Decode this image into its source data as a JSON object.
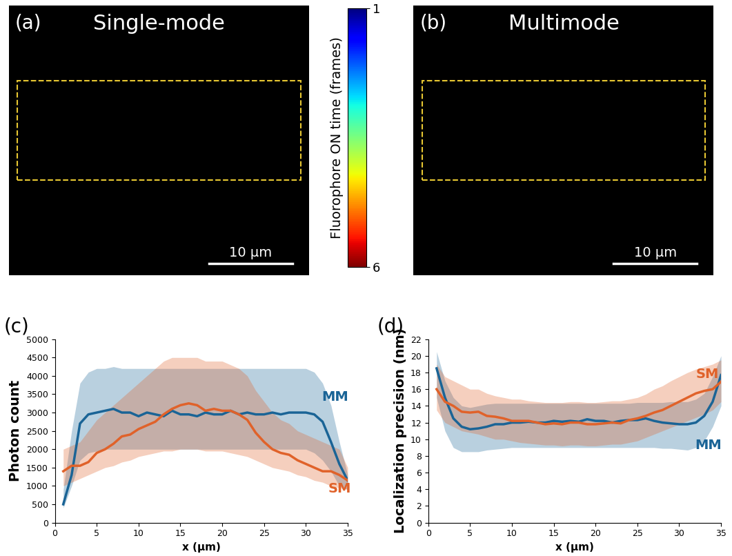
{
  "images": [
    {
      "panel_label": "(a)",
      "title": "Single-mode",
      "scale_bar": {
        "length": 10,
        "label": "10 µm"
      }
    },
    {
      "panel_label": "(b)",
      "title": "Multimode",
      "scale_bar": {
        "length": 10,
        "label": "10 µm"
      }
    }
  ],
  "colorbar": {
    "label": "Fluorophore ON time (frames)",
    "range": [
      1,
      6
    ],
    "ticks": [
      1,
      6
    ]
  },
  "chart_data": [
    {
      "type": "line",
      "panel_label": "(c)",
      "x_label": "x (µm)",
      "y_label": "Photon count",
      "xlim": [
        0,
        35
      ],
      "xticks": [
        0,
        5,
        10,
        15,
        20,
        25,
        30,
        35
      ],
      "ylim": [
        0,
        5000
      ],
      "yticks": [
        0,
        500,
        1000,
        1500,
        2000,
        2500,
        3000,
        3500,
        4000,
        4500,
        5000
      ],
      "x": [
        1,
        2,
        3,
        4,
        5,
        6,
        7,
        8,
        9,
        10,
        11,
        12,
        13,
        14,
        15,
        16,
        17,
        18,
        19,
        20,
        21,
        22,
        23,
        24,
        25,
        26,
        27,
        28,
        29,
        30,
        31,
        32,
        33,
        34,
        35
      ],
      "series": [
        {
          "name": "MM",
          "color": "#1a6496",
          "values": [
            500,
            1300,
            2700,
            2950,
            3000,
            3050,
            3100,
            3000,
            3000,
            2900,
            3000,
            2950,
            2900,
            3050,
            2950,
            2950,
            2900,
            3000,
            2950,
            2950,
            3050,
            2950,
            3000,
            2950,
            2950,
            3000,
            2950,
            3000,
            3000,
            3000,
            2950,
            2750,
            2200,
            1600,
            1150
          ],
          "upper": [
            900,
            2500,
            3800,
            4100,
            4200,
            4200,
            4250,
            4200,
            4200,
            4200,
            4200,
            4200,
            4200,
            4200,
            4200,
            4200,
            4200,
            4200,
            4200,
            4200,
            4200,
            4200,
            4200,
            4200,
            4200,
            4200,
            4200,
            4200,
            4200,
            4200,
            4100,
            3800,
            3200,
            2200,
            1300
          ],
          "lower": [
            400,
            1000,
            1700,
            1900,
            1950,
            2000,
            2000,
            2000,
            2000,
            2000,
            2000,
            2000,
            2000,
            2000,
            2000,
            2000,
            2000,
            2000,
            2000,
            2000,
            2000,
            2000,
            2000,
            2000,
            2000,
            2000,
            2000,
            2000,
            2000,
            2000,
            1900,
            1700,
            1400,
            1000,
            900
          ]
        },
        {
          "name": "SM",
          "color": "#e0622a",
          "values": [
            1400,
            1550,
            1550,
            1650,
            1900,
            2000,
            2150,
            2350,
            2400,
            2550,
            2650,
            2750,
            2950,
            3100,
            3200,
            3250,
            3200,
            3050,
            3100,
            3050,
            3050,
            2950,
            2800,
            2450,
            2200,
            2000,
            1900,
            1850,
            1700,
            1600,
            1500,
            1400,
            1400,
            1300,
            1150
          ],
          "upper": [
            2000,
            2100,
            2200,
            2500,
            2800,
            3000,
            3200,
            3400,
            3600,
            3800,
            4000,
            4200,
            4400,
            4500,
            4500,
            4500,
            4500,
            4400,
            4400,
            4400,
            4300,
            4200,
            4000,
            3600,
            3300,
            3000,
            2800,
            2700,
            2500,
            2400,
            2300,
            2200,
            2100,
            2000,
            1500
          ],
          "lower": [
            1000,
            1100,
            1200,
            1300,
            1400,
            1500,
            1550,
            1650,
            1700,
            1800,
            1850,
            1900,
            1950,
            1950,
            2000,
            2000,
            2000,
            1950,
            1950,
            1950,
            1900,
            1850,
            1800,
            1700,
            1600,
            1500,
            1450,
            1400,
            1300,
            1250,
            1150,
            1100,
            1000,
            950,
            900
          ]
        }
      ]
    },
    {
      "type": "line",
      "panel_label": "(d)",
      "x_label": "x (µm)",
      "y_label": "Localization precision (nm)",
      "xlim": [
        0,
        35
      ],
      "xticks": [
        0,
        5,
        10,
        15,
        20,
        25,
        30,
        35
      ],
      "ylim": [
        0,
        22
      ],
      "yticks": [
        0,
        2,
        4,
        6,
        8,
        10,
        12,
        14,
        16,
        18,
        20,
        22
      ],
      "x": [
        1,
        2,
        3,
        4,
        5,
        6,
        7,
        8,
        9,
        10,
        11,
        12,
        13,
        14,
        15,
        16,
        17,
        18,
        19,
        20,
        21,
        22,
        23,
        24,
        25,
        26,
        27,
        28,
        29,
        30,
        31,
        32,
        33,
        34,
        35
      ],
      "series": [
        {
          "name": "MM",
          "color": "#1a6496",
          "values": [
            18.5,
            15,
            12.5,
            11.5,
            11.2,
            11.3,
            11.5,
            11.8,
            11.8,
            12,
            12,
            12.1,
            12,
            12,
            12.2,
            12.1,
            12.2,
            12.1,
            12.4,
            12.2,
            12.2,
            12,
            12.2,
            12.3,
            12.3,
            12.5,
            12.2,
            12,
            11.9,
            11.8,
            11.8,
            12,
            12.8,
            14.5,
            17.7
          ],
          "upper": [
            20.5,
            17,
            15,
            14,
            13.8,
            14,
            14.2,
            14.3,
            14.3,
            14.3,
            14.3,
            14.3,
            14.3,
            14.3,
            14.3,
            14.3,
            14.3,
            14.3,
            14.3,
            14.3,
            14.3,
            14.3,
            14.3,
            14.3,
            14.4,
            14.4,
            14.4,
            14.4,
            14.5,
            14.5,
            14.5,
            14.8,
            15.5,
            17.5,
            20
          ],
          "lower": [
            15,
            11,
            9,
            8.5,
            8.5,
            8.5,
            8.7,
            8.8,
            8.9,
            9,
            9,
            9,
            9,
            9,
            9,
            9,
            9,
            9,
            9,
            9,
            9,
            9,
            9,
            9,
            9,
            9,
            9,
            8.9,
            8.9,
            8.8,
            8.7,
            9,
            9.8,
            11.5,
            14
          ]
        },
        {
          "name": "SM",
          "color": "#e0622a",
          "values": [
            16,
            14.5,
            14,
            13.3,
            13.2,
            13.3,
            12.8,
            12.7,
            12.5,
            12.2,
            12.2,
            12.2,
            12,
            11.8,
            11.9,
            11.8,
            12,
            12,
            11.8,
            11.8,
            11.9,
            12,
            11.9,
            12.3,
            12.5,
            12.8,
            13.2,
            13.5,
            14,
            14.5,
            15,
            15.5,
            15.8,
            16,
            16.9
          ],
          "upper": [
            19,
            17.5,
            17,
            16.5,
            16,
            16,
            15.5,
            15.2,
            15,
            14.8,
            14.8,
            14.6,
            14.5,
            14.4,
            14.4,
            14.4,
            14.5,
            14.5,
            14.4,
            14.4,
            14.5,
            14.6,
            14.6,
            14.8,
            15,
            15.4,
            16,
            16.4,
            17,
            17.5,
            18,
            18.4,
            18.7,
            19,
            19.5
          ],
          "lower": [
            13.5,
            12,
            11.5,
            11,
            10.8,
            10.6,
            10.3,
            10,
            10,
            9.8,
            9.6,
            9.5,
            9.4,
            9.3,
            9.3,
            9.2,
            9.3,
            9.3,
            9.2,
            9.2,
            9.3,
            9.4,
            9.4,
            9.6,
            9.8,
            10.2,
            10.6,
            11,
            11.4,
            11.8,
            12.2,
            12.6,
            13,
            13.5,
            14.5
          ]
        }
      ]
    }
  ]
}
